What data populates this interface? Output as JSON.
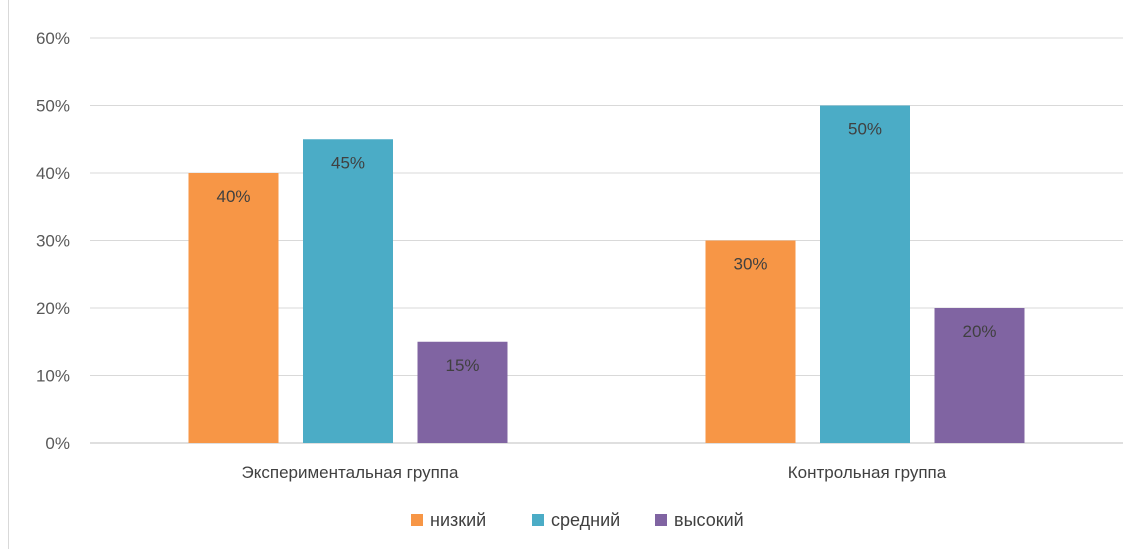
{
  "chart_data": {
    "type": "bar",
    "categories": [
      "Экспериментальная группа",
      "Контрольная группа"
    ],
    "series": [
      {
        "name": "низкий",
        "values": [
          40,
          30
        ],
        "color": "#f79646",
        "labels": [
          "40%",
          "30%"
        ]
      },
      {
        "name": "средний",
        "values": [
          45,
          50
        ],
        "color": "#4bacc6",
        "labels": [
          "45%",
          "50%"
        ]
      },
      {
        "name": "высокий",
        "values": [
          15,
          20
        ],
        "color": "#8064a2",
        "labels": [
          "15%",
          "20%"
        ]
      }
    ],
    "yticks": [
      "0%",
      "10%",
      "20%",
      "30%",
      "40%",
      "50%",
      "60%"
    ],
    "ylim": [
      0,
      60
    ],
    "grid": true,
    "legend": "bottom",
    "title": "",
    "xlabel": "",
    "ylabel": ""
  }
}
